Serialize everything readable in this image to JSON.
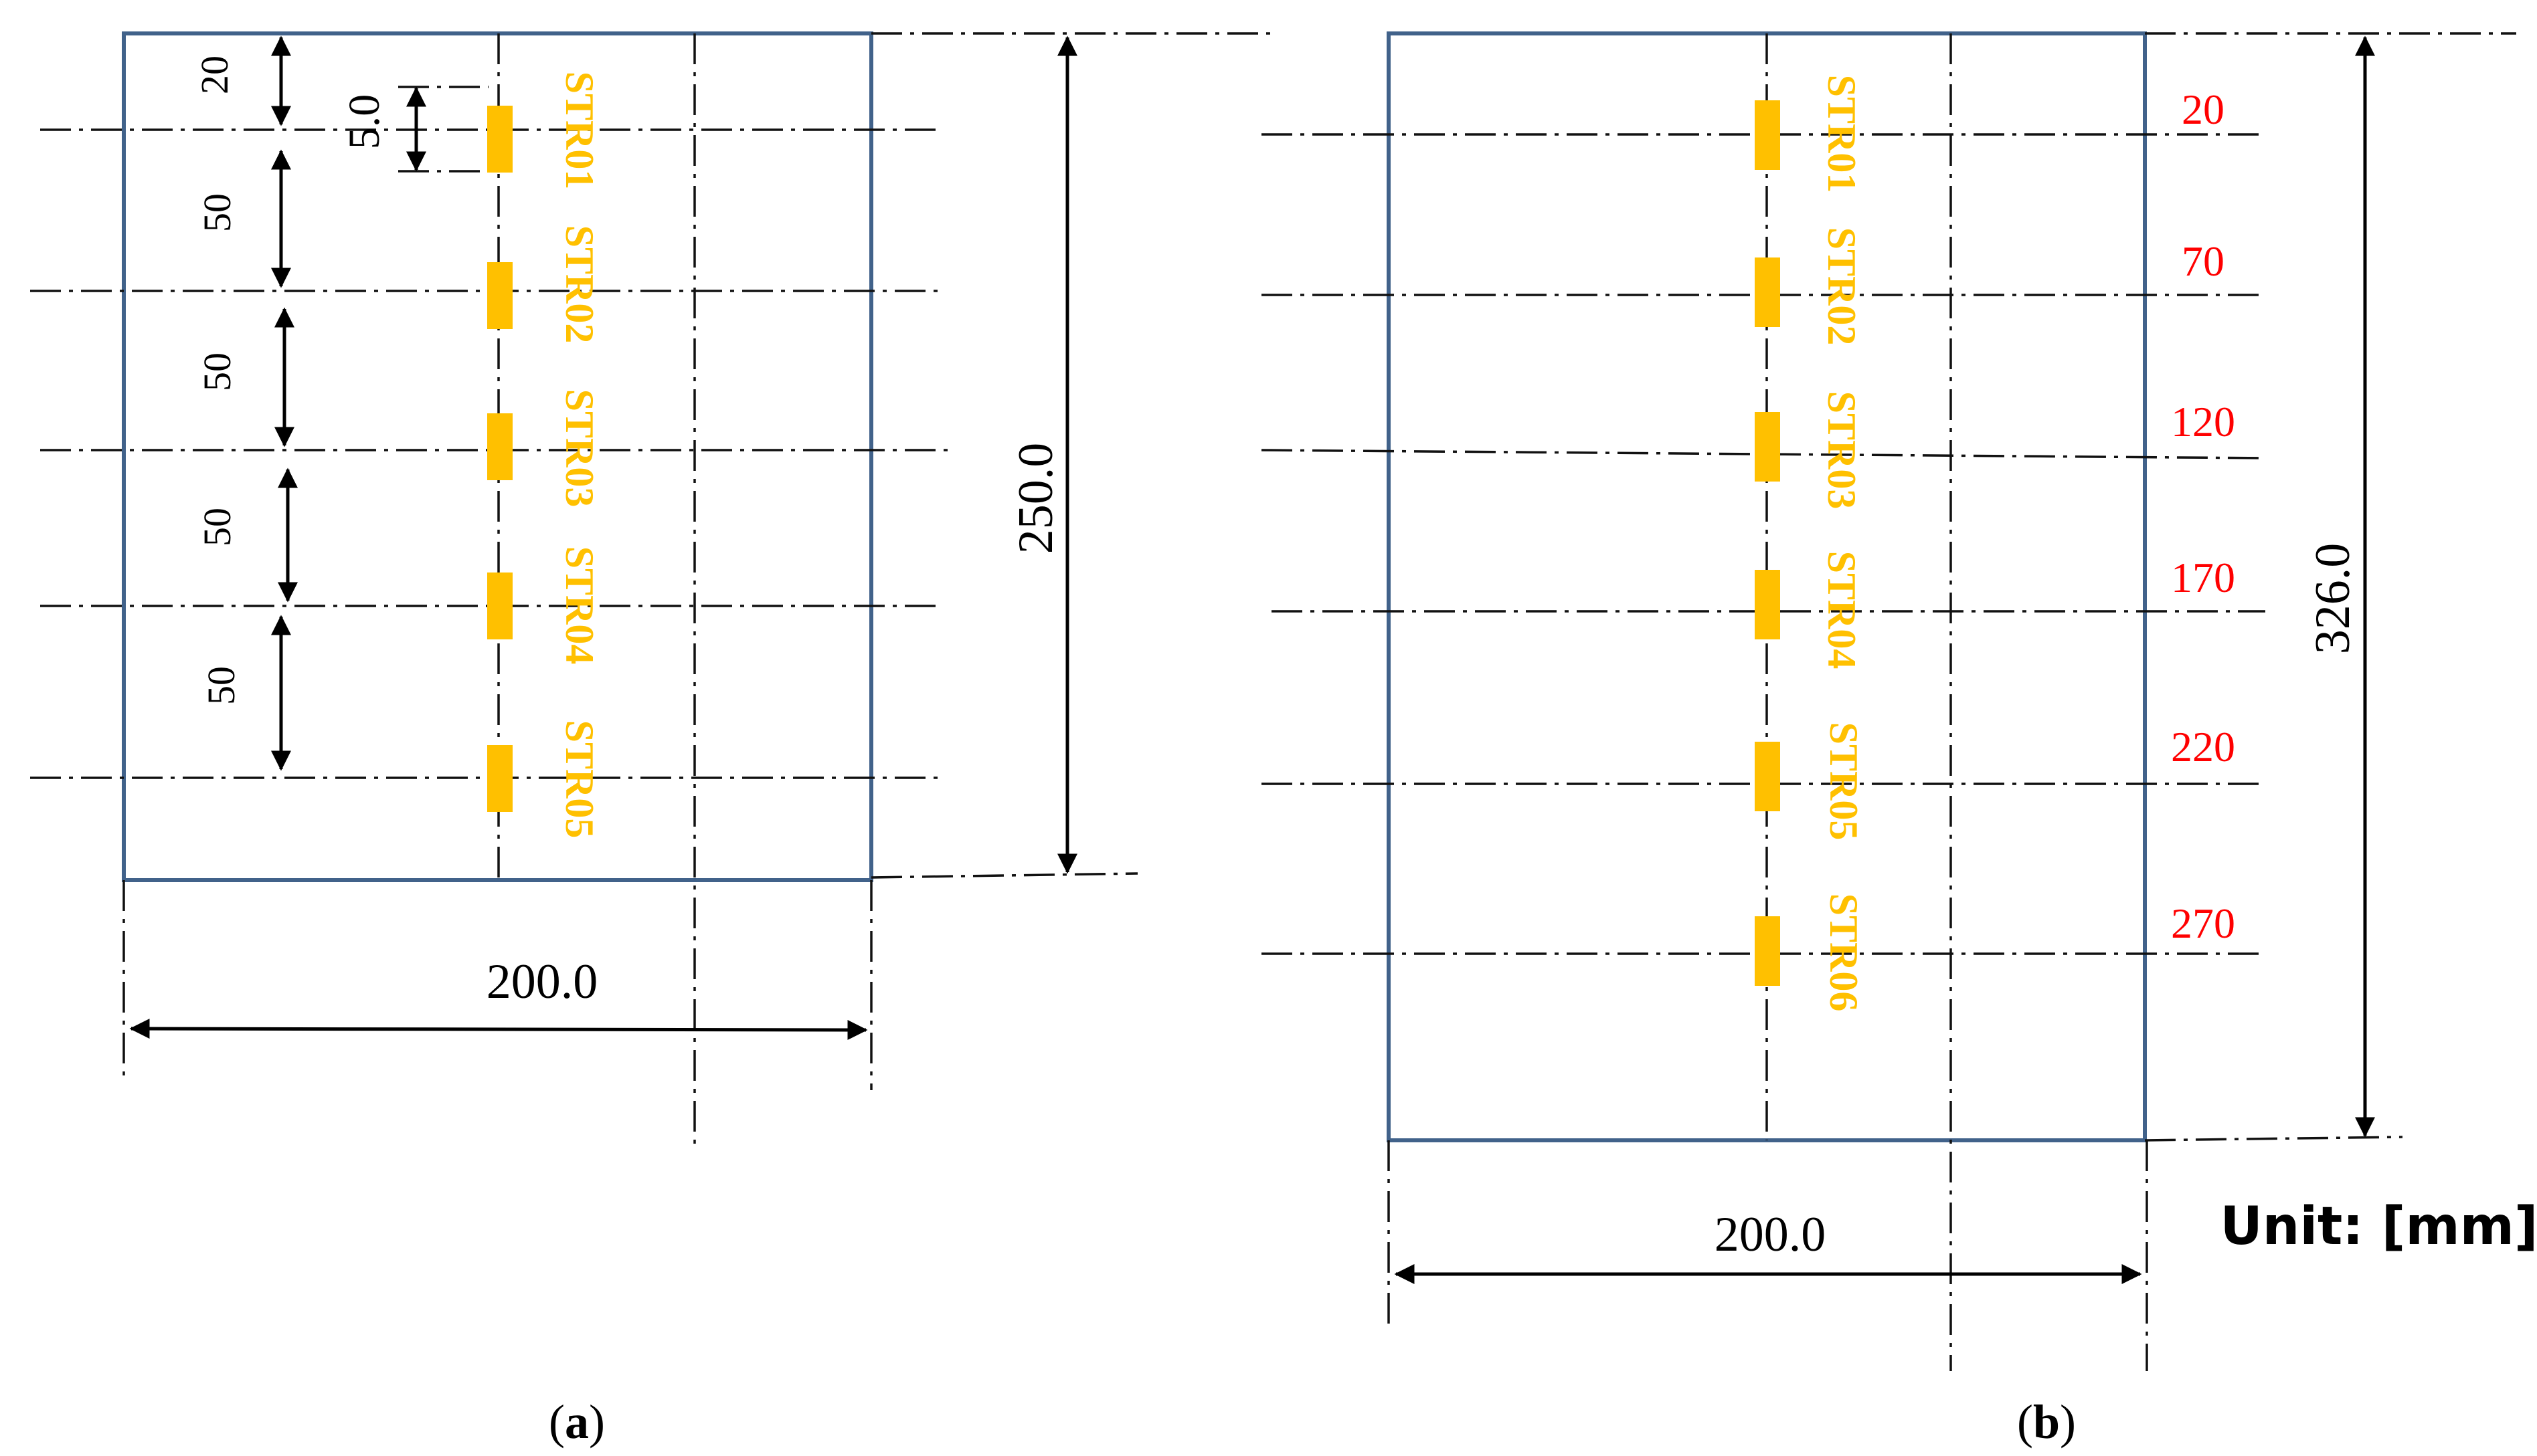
{
  "colors": {
    "plate": "#41628A",
    "gauge": "#FFC000",
    "position": "#FF0000",
    "line": "#000000"
  },
  "panel_a": {
    "caption_open": "(",
    "caption_letter": "a",
    "caption_close": ")",
    "width_label": "200.0",
    "height_label": "250.0",
    "gauge_length_label": "5.0",
    "spacing_labels": [
      "20",
      "50",
      "50",
      "50",
      "50"
    ],
    "gauges": [
      {
        "label": "STR01"
      },
      {
        "label": "STR02"
      },
      {
        "label": "STR03"
      },
      {
        "label": "STR04"
      },
      {
        "label": "STR05"
      }
    ]
  },
  "panel_b": {
    "caption_open": "(",
    "caption_letter": "b",
    "caption_close": ")",
    "width_label": "200.0",
    "height_label": "326.0",
    "unit_label": "Unit: [mm]",
    "gauges": [
      {
        "label": "STR01",
        "position": "20"
      },
      {
        "label": "STR02",
        "position": "70"
      },
      {
        "label": "STR03",
        "position": "120"
      },
      {
        "label": "STR04",
        "position": "170"
      },
      {
        "label": "STR05",
        "position": "220"
      },
      {
        "label": "STR06",
        "position": "270"
      }
    ]
  }
}
